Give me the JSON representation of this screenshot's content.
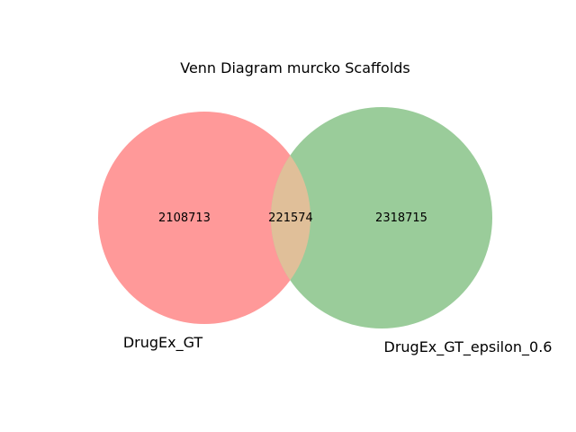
{
  "title": "Venn Diagram murcko Scaffolds",
  "sets": [
    {
      "label": "DrugEx_GT",
      "color": "#ff9999"
    },
    {
      "label": "DrugEx_GT_epsilon_0.6",
      "color": "#9acc9a"
    }
  ],
  "counts": {
    "a_only": "2108713",
    "intersection": "221574",
    "b_only": "2318715"
  },
  "overlap_color": "#e0bf99"
}
